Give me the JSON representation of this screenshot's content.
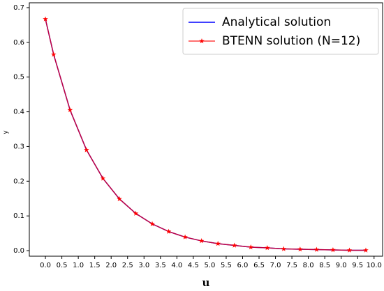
{
  "chart_data": {
    "type": "line",
    "xlabel": "u",
    "ylabel": "y",
    "x": [
      0,
      0.25,
      0.75,
      1.25,
      1.75,
      2.25,
      2.75,
      3.25,
      3.75,
      4.25,
      4.75,
      5.25,
      5.75,
      6.25,
      6.75,
      7.25,
      7.75,
      8.25,
      8.75,
      9.25,
      9.75
    ],
    "series": [
      {
        "name": "Analytical solution",
        "color": "#0000ff",
        "marker": false,
        "values": [
          0.667,
          0.565,
          0.405,
          0.29,
          0.208,
          0.149,
          0.107,
          0.077,
          0.055,
          0.039,
          0.028,
          0.02,
          0.015,
          0.01,
          0.008,
          0.005,
          0.004,
          0.003,
          0.002,
          0.001,
          0.001
        ]
      },
      {
        "name": "BTENN solution (N=12)",
        "color": "#ff0000",
        "marker": true,
        "values": [
          0.667,
          0.565,
          0.405,
          0.29,
          0.208,
          0.149,
          0.107,
          0.077,
          0.055,
          0.039,
          0.028,
          0.02,
          0.015,
          0.01,
          0.008,
          0.005,
          0.004,
          0.003,
          0.002,
          0.001,
          0.001
        ]
      }
    ],
    "xlim": [
      -0.49,
      10.26
    ],
    "ylim": [
      -0.016,
      0.714
    ],
    "xticks": [
      {
        "value": 0,
        "label": "0.0"
      },
      0.5,
      {
        "value": 1,
        "label": "1.0"
      },
      1.5,
      {
        "value": 2,
        "label": "2.0"
      },
      2.5,
      {
        "value": 3,
        "label": "3.0"
      },
      3.5,
      {
        "value": 4,
        "label": "4.0"
      },
      4.5,
      {
        "value": 5,
        "label": "5.0"
      },
      5.5,
      {
        "value": 6,
        "label": "6.0"
      },
      6.5,
      {
        "value": 7,
        "label": "7.0"
      },
      7.5,
      {
        "value": 8,
        "label": "8.0"
      },
      8.5,
      {
        "value": 9,
        "label": "9.0"
      },
      9.5,
      {
        "value": 10,
        "label": "10.0"
      }
    ],
    "yticks": [
      {
        "value": 0,
        "label": "0.0"
      },
      0.1,
      0.2,
      0.3,
      0.4,
      0.5,
      0.6,
      0.7
    ],
    "grid": false,
    "legend": "upper right"
  }
}
